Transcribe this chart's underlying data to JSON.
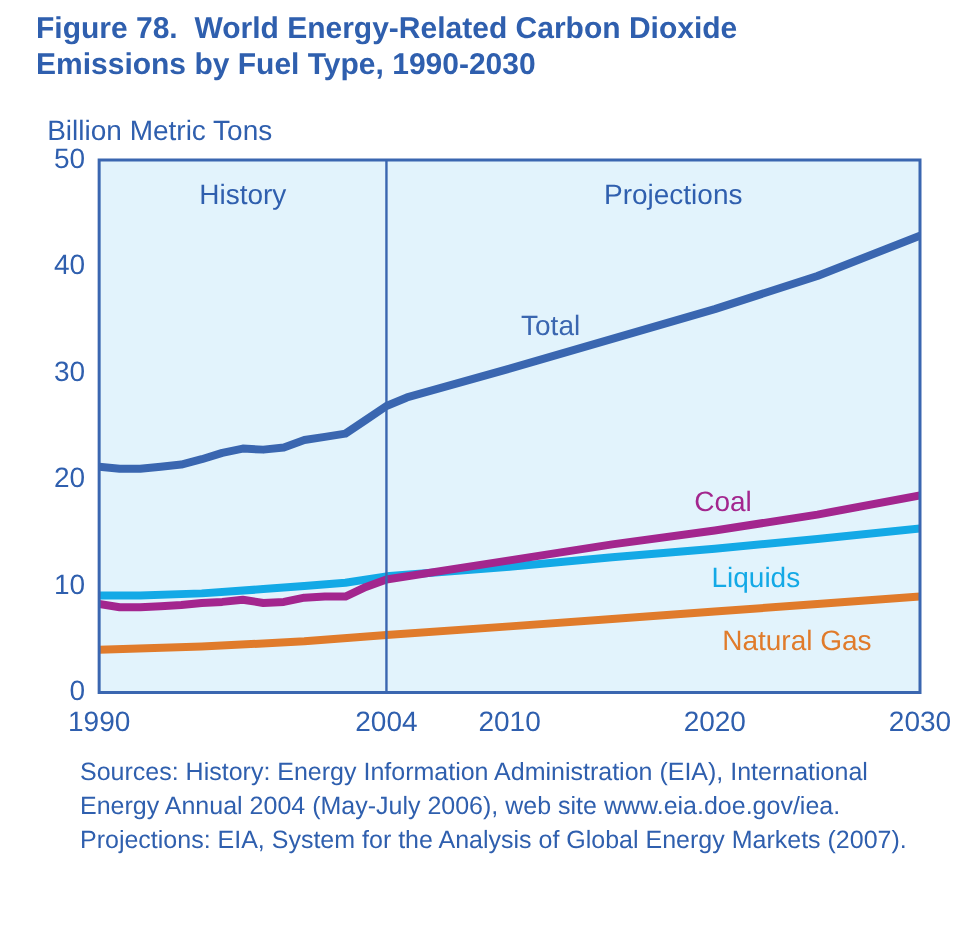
{
  "chart_data": {
    "type": "line",
    "title": "Figure 78.  World Energy-Related Carbon Dioxide\nEmissions by Fuel Type, 1990-2030",
    "ylabel": "Billion Metric Tons",
    "xlim": [
      1990,
      2030
    ],
    "xticks": [
      1990,
      2004,
      2010,
      2020,
      2030
    ],
    "ylim": [
      0,
      50
    ],
    "yticks": [
      0,
      10,
      20,
      30,
      40,
      50
    ],
    "grid": false,
    "legend": false,
    "marker": "none",
    "line_style": "solid",
    "ref_lines": [
      {
        "axis": "x",
        "value": 2004,
        "color": "#3a66b0"
      }
    ],
    "annotations": [
      "History",
      "Projections",
      "Sources: History: Energy Information Administration (EIA), International Energy Annual 2004 (May-July 2006), web site www.eia.doe.gov/iea. Projections: EIA, System for the Analysis of Global Energy Markets (2007)."
    ],
    "series": [
      {
        "name": "Total",
        "color": "#3a66b0",
        "x": [
          1990,
          1991,
          1992,
          1993,
          1994,
          1995,
          1996,
          1997,
          1998,
          1999,
          2000,
          2001,
          2002,
          2003,
          2004,
          2005,
          2010,
          2015,
          2020,
          2025,
          2030
        ],
        "values": [
          21.2,
          21.0,
          21.0,
          21.2,
          21.4,
          21.9,
          22.5,
          22.9,
          22.8,
          23.0,
          23.7,
          24.0,
          24.3,
          25.6,
          26.9,
          27.7,
          30.4,
          33.2,
          36.0,
          39.1,
          42.9
        ]
      },
      {
        "name": "Coal",
        "color": "#a3268e",
        "x": [
          1990,
          1991,
          1992,
          1993,
          1994,
          1995,
          1996,
          1997,
          1998,
          1999,
          2000,
          2001,
          2002,
          2003,
          2004,
          2010,
          2015,
          2020,
          2025,
          2030
        ],
        "values": [
          8.3,
          8.0,
          8.0,
          8.1,
          8.2,
          8.4,
          8.5,
          8.7,
          8.4,
          8.5,
          8.9,
          9.0,
          9.0,
          9.9,
          10.6,
          12.4,
          13.9,
          15.2,
          16.7,
          18.5
        ]
      },
      {
        "name": "Liquids",
        "color": "#13a9e6",
        "x": [
          1990,
          1992,
          1995,
          1998,
          2000,
          2002,
          2004,
          2010,
          2015,
          2020,
          2025,
          2030
        ],
        "values": [
          9.1,
          9.1,
          9.3,
          9.7,
          10.0,
          10.3,
          10.9,
          11.8,
          12.7,
          13.5,
          14.4,
          15.4
        ]
      },
      {
        "name": "Natural Gas",
        "color": "#e07b2b",
        "x": [
          1990,
          1995,
          2000,
          2004,
          2010,
          2015,
          2020,
          2025,
          2030
        ],
        "values": [
          4.0,
          4.3,
          4.8,
          5.4,
          6.2,
          6.9,
          7.6,
          8.3,
          9.0
        ]
      }
    ]
  }
}
